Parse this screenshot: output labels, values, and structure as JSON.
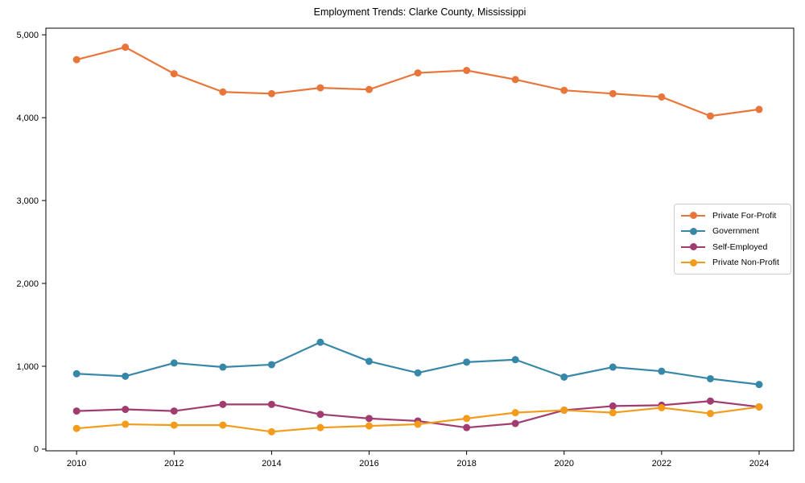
{
  "title": "Employment Trends: Clarke County, Mississippi",
  "colors": {
    "private_for_profit": "#e8763b",
    "government": "#3787a8",
    "self_employed": "#a23c70",
    "private_non_profit": "#f39c1b",
    "axis": "#000000",
    "legend_border": "#cccccc",
    "background": "#ffffff"
  },
  "axes": {
    "x_ticks": [
      {
        "value": 2010,
        "label": "2010"
      },
      {
        "value": 2012,
        "label": "2012"
      },
      {
        "value": 2014,
        "label": "2014"
      },
      {
        "value": 2016,
        "label": "2016"
      },
      {
        "value": 2018,
        "label": "2018"
      },
      {
        "value": 2020,
        "label": "2020"
      },
      {
        "value": 2022,
        "label": "2022"
      },
      {
        "value": 2024,
        "label": "2024"
      }
    ],
    "y_ticks": [
      {
        "value": 0,
        "label": "0"
      },
      {
        "value": 1000,
        "label": "1,000"
      },
      {
        "value": 2000,
        "label": "2,000"
      },
      {
        "value": 3000,
        "label": "3,000"
      },
      {
        "value": 4000,
        "label": "4,000"
      },
      {
        "value": 5000,
        "label": "5,000"
      }
    ]
  },
  "chart_data": {
    "type": "line",
    "title": "Employment Trends: Clarke County, Mississippi",
    "xlabel": "",
    "ylabel": "",
    "x": [
      2010,
      2011,
      2012,
      2013,
      2014,
      2015,
      2016,
      2017,
      2018,
      2019,
      2020,
      2021,
      2022,
      2023,
      2024
    ],
    "series": [
      {
        "name": "Private For-Profit",
        "color": "#e8763b",
        "values": [
          4700,
          4850,
          4530,
          4310,
          4290,
          4360,
          4340,
          4540,
          4570,
          4460,
          4330,
          4290,
          4250,
          4020,
          4100
        ]
      },
      {
        "name": "Government",
        "color": "#3787a8",
        "values": [
          910,
          880,
          1040,
          990,
          1020,
          1290,
          1060,
          920,
          1050,
          1080,
          870,
          990,
          940,
          850,
          780
        ]
      },
      {
        "name": "Self-Employed",
        "color": "#a23c70",
        "values": [
          460,
          480,
          460,
          540,
          540,
          420,
          370,
          340,
          260,
          310,
          470,
          520,
          530,
          580,
          510
        ]
      },
      {
        "name": "Private Non-Profit",
        "color": "#f39c1b",
        "values": [
          250,
          300,
          290,
          290,
          210,
          260,
          280,
          300,
          370,
          440,
          470,
          440,
          500,
          430,
          510
        ]
      }
    ],
    "xlim": [
      2009.37,
      2024.71
    ],
    "ylim": [
      -20,
      5080
    ],
    "grid": false,
    "legend_position": "center-right",
    "marker": "circle",
    "marker_radius": 4.5,
    "line_width": 2.2
  }
}
